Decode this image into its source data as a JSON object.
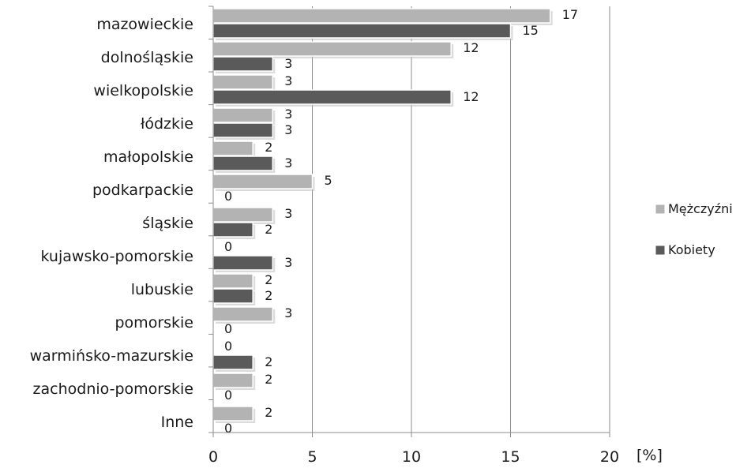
{
  "chart_data": {
    "type": "bar",
    "orientation": "horizontal",
    "categories": [
      "mazowieckie",
      "dolnośląskie",
      "wielkopolskie",
      "łódzkie",
      "małopolskie",
      "podkarpackie",
      "śląskie",
      "kujawsko-pomorskie",
      "lubuskie",
      "pomorskie",
      "warmińsko-mazurskie",
      "zachodnio-pomorskie",
      "Inne"
    ],
    "series": [
      {
        "name": "Mężczyźni",
        "color": "#b3b3b3",
        "values": [
          17,
          12,
          3,
          3,
          2,
          5,
          3,
          0,
          2,
          3,
          0,
          2,
          2
        ]
      },
      {
        "name": "Kobiety",
        "color": "#5a5a5a",
        "values": [
          15,
          3,
          12,
          3,
          3,
          0,
          2,
          3,
          2,
          0,
          2,
          0,
          0
        ]
      }
    ],
    "xlim": [
      0,
      20
    ],
    "x_ticks": [
      "0",
      "5",
      "10",
      "15",
      "20"
    ],
    "x_unit": "[%]",
    "grid": "vertical",
    "legend_position": "right"
  }
}
